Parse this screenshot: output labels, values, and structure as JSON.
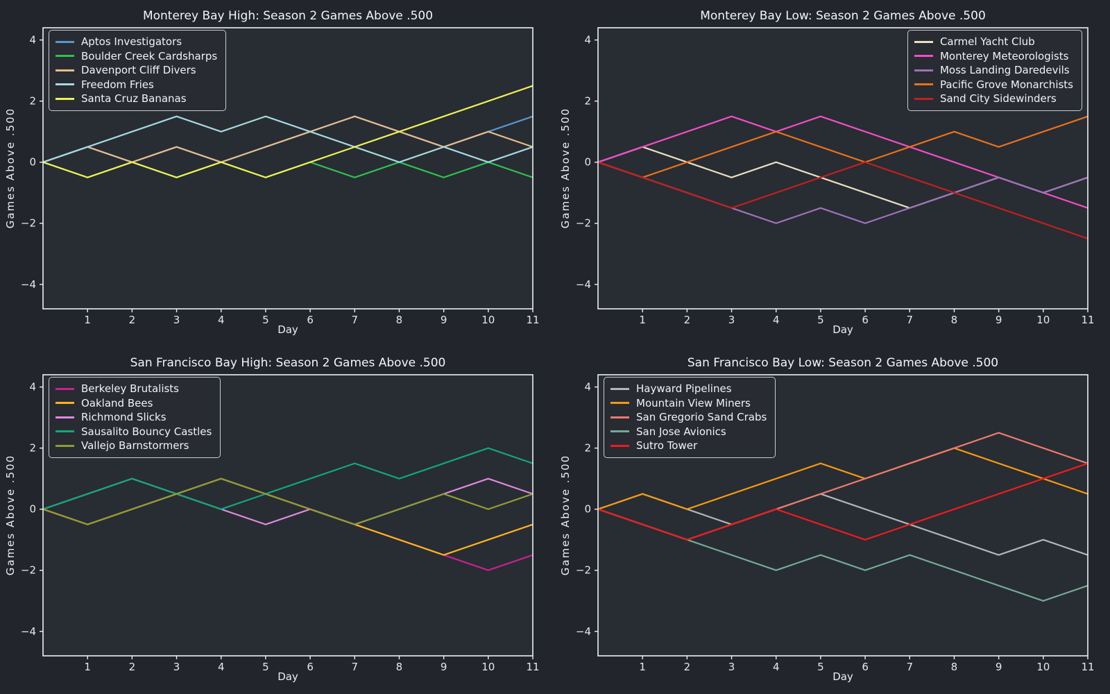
{
  "theme": {
    "figure_bg": "#22252b",
    "axes_bg": "#282c33",
    "spine_color": "#eef0f2",
    "tick_label_color": "#e6e8eb",
    "text_color": "#f2f3f5"
  },
  "chart_data": [
    {
      "type": "line",
      "title": "Monterey Bay High: Season 2 Games Above .500",
      "xlabel": "Day",
      "ylabel": "Games Above .500",
      "x": [
        0,
        1,
        2,
        3,
        4,
        5,
        6,
        7,
        8,
        9,
        10,
        11
      ],
      "xticks": [
        1,
        2,
        3,
        4,
        5,
        6,
        7,
        8,
        9,
        10,
        11
      ],
      "yticks": [
        -4,
        -2,
        0,
        2,
        4
      ],
      "xlim": [
        0,
        11
      ],
      "ylim": [
        -4.8,
        4.4
      ],
      "grid": false,
      "legend_position": "upper-left",
      "series": [
        {
          "name": "Aptos Investigators",
          "color": "#5598d0",
          "values": [
            0,
            0.5,
            0,
            0.5,
            0,
            0.5,
            1,
            1.5,
            1,
            0.5,
            1,
            1.5
          ]
        },
        {
          "name": "Boulder Creek Cardsharps",
          "color": "#2dc24e",
          "values": [
            0,
            -0.5,
            0,
            -0.5,
            0,
            -0.5,
            0,
            -0.5,
            0,
            -0.5,
            0,
            -0.5
          ]
        },
        {
          "name": "Davenport Cliff Divers",
          "color": "#e5bd8a",
          "values": [
            0,
            0.5,
            0,
            0.5,
            0,
            0.5,
            1,
            1.5,
            1,
            0.5,
            1,
            0.5
          ]
        },
        {
          "name": "Freedom Fries",
          "color": "#a5dade",
          "values": [
            0,
            0.5,
            1,
            1.5,
            1,
            1.5,
            1,
            0.5,
            0,
            0.5,
            0,
            0.5
          ]
        },
        {
          "name": "Santa Cruz Bananas",
          "color": "#f0f154",
          "values": [
            0,
            -0.5,
            0,
            -0.5,
            0,
            -0.5,
            0,
            0.5,
            1,
            1.5,
            2,
            2.5
          ]
        }
      ]
    },
    {
      "type": "line",
      "title": "Monterey Bay Low: Season 2 Games Above .500",
      "xlabel": "Day",
      "ylabel": "Games Above .500",
      "x": [
        0,
        1,
        2,
        3,
        4,
        5,
        6,
        7,
        8,
        9,
        10,
        11
      ],
      "xticks": [
        1,
        2,
        3,
        4,
        5,
        6,
        7,
        8,
        9,
        10,
        11
      ],
      "yticks": [
        -4,
        -2,
        0,
        2,
        4
      ],
      "xlim": [
        0,
        11
      ],
      "ylim": [
        -4.8,
        4.4
      ],
      "grid": false,
      "legend_position": "upper-right",
      "series": [
        {
          "name": "Carmel Yacht Club",
          "color": "#eadfc1",
          "values": [
            0,
            0.5,
            0,
            -0.5,
            0,
            -0.5,
            -1,
            -1.5,
            -1,
            -0.5,
            -1,
            -0.5
          ]
        },
        {
          "name": "Monterey Meteorologists",
          "color": "#f04fc4",
          "values": [
            0,
            0.5,
            1,
            1.5,
            1,
            1.5,
            1,
            0.5,
            0,
            -0.5,
            -1,
            -1.5
          ]
        },
        {
          "name": "Moss Landing Daredevils",
          "color": "#9d72ba",
          "values": [
            0,
            -0.5,
            -1,
            -1.5,
            -2,
            -1.5,
            -2,
            -1.5,
            -1,
            -0.5,
            -1,
            -0.5
          ]
        },
        {
          "name": "Pacific Grove Monarchists",
          "color": "#e8721a",
          "values": [
            0,
            -0.5,
            0,
            0.5,
            1,
            0.5,
            0,
            0.5,
            1,
            0.5,
            1,
            1.5
          ]
        },
        {
          "name": "Sand City Sidewinders",
          "color": "#c02020",
          "values": [
            0,
            -0.5,
            -1,
            -1.5,
            -1,
            -0.5,
            0,
            -0.5,
            -1,
            -1.5,
            -2,
            -2.5
          ]
        }
      ]
    },
    {
      "type": "line",
      "title": "San Francisco Bay High: Season 2 Games Above .500",
      "xlabel": "Day",
      "ylabel": "Games Above .500",
      "x": [
        0,
        1,
        2,
        3,
        4,
        5,
        6,
        7,
        8,
        9,
        10,
        11
      ],
      "xticks": [
        1,
        2,
        3,
        4,
        5,
        6,
        7,
        8,
        9,
        10,
        11
      ],
      "yticks": [
        -4,
        -2,
        0,
        2,
        4
      ],
      "xlim": [
        0,
        11
      ],
      "ylim": [
        -4.8,
        4.4
      ],
      "grid": false,
      "legend_position": "upper-left",
      "series": [
        {
          "name": "Berkeley Brutalists",
          "color": "#c91f92",
          "values": [
            0,
            -0.5,
            0,
            0.5,
            1,
            0.5,
            0,
            -0.5,
            -1,
            -1.5,
            -2,
            -1.5
          ]
        },
        {
          "name": "Oakland Bees",
          "color": "#ffb41f",
          "values": [
            0,
            -0.5,
            0,
            0.5,
            1,
            0.5,
            0,
            -0.5,
            -1,
            -1.5,
            -1,
            -0.5
          ]
        },
        {
          "name": "Richmond Slicks",
          "color": "#dd8add",
          "values": [
            0,
            0.5,
            1,
            0.5,
            0,
            -0.5,
            0,
            -0.5,
            0,
            0.5,
            1,
            0.5
          ]
        },
        {
          "name": "Sausalito Bouncy Castles",
          "color": "#10a87a",
          "values": [
            0,
            0.5,
            1,
            0.5,
            0,
            0.5,
            1,
            1.5,
            1,
            1.5,
            2,
            1.5
          ]
        },
        {
          "name": "Vallejo Barnstormers",
          "color": "#8e9c34",
          "values": [
            0,
            -0.5,
            0,
            0.5,
            1,
            0.5,
            0,
            -0.5,
            0,
            0.5,
            0,
            0.5
          ]
        }
      ]
    },
    {
      "type": "line",
      "title": "San Francisco Bay Low: Season 2 Games Above .500",
      "xlabel": "Day",
      "ylabel": "Games Above .500",
      "x": [
        0,
        1,
        2,
        3,
        4,
        5,
        6,
        7,
        8,
        9,
        10,
        11
      ],
      "xticks": [
        1,
        2,
        3,
        4,
        5,
        6,
        7,
        8,
        9,
        10,
        11
      ],
      "yticks": [
        -4,
        -2,
        0,
        2,
        4
      ],
      "xlim": [
        0,
        11
      ],
      "ylim": [
        -4.8,
        4.4
      ],
      "grid": false,
      "legend_position": "upper-left",
      "series": [
        {
          "name": "Hayward Pipelines",
          "color": "#b2b5ba",
          "values": [
            0,
            0.5,
            0,
            -0.5,
            0,
            0.5,
            0,
            -0.5,
            -1,
            -1.5,
            -1,
            -1.5
          ]
        },
        {
          "name": "Mountain View Miners",
          "color": "#f59a10",
          "values": [
            0,
            0.5,
            0,
            0.5,
            1,
            1.5,
            1,
            1.5,
            2,
            1.5,
            1,
            0.5
          ]
        },
        {
          "name": "San Gregorio Sand Crabs",
          "color": "#ee7a6d",
          "values": [
            0,
            -0.5,
            -1,
            -0.5,
            0,
            0.5,
            1,
            1.5,
            2,
            2.5,
            2,
            1.5
          ]
        },
        {
          "name": "San Jose Avionics",
          "color": "#73aa95",
          "values": [
            0,
            -0.5,
            -1,
            -1.5,
            -2,
            -1.5,
            -2,
            -1.5,
            -2,
            -2.5,
            -3,
            -2.5
          ]
        },
        {
          "name": "Sutro Tower",
          "color": "#ee1c1c",
          "values": [
            0,
            -0.5,
            -1,
            -0.5,
            0,
            -0.5,
            -1,
            -0.5,
            0,
            0.5,
            1,
            1.5
          ]
        }
      ]
    }
  ]
}
